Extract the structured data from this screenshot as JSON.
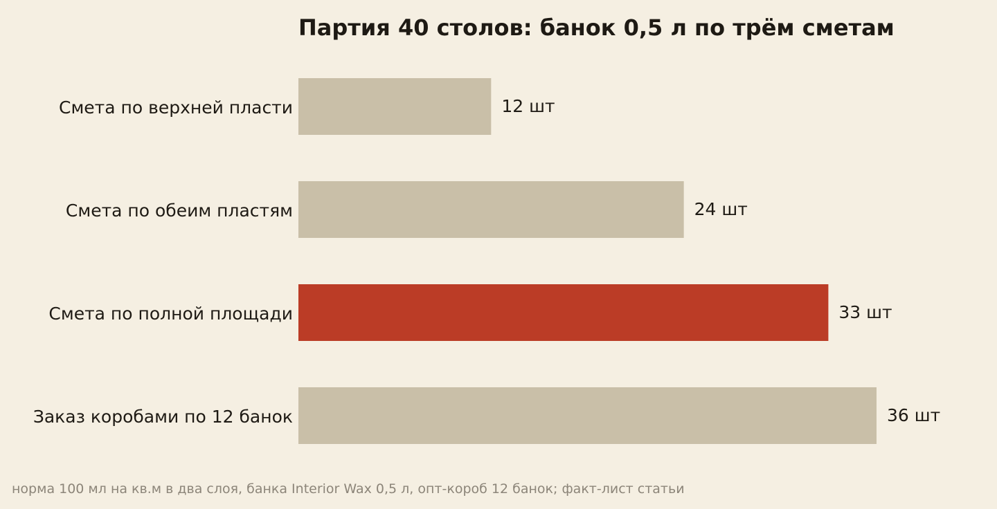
{
  "chart_data": {
    "type": "bar",
    "orientation": "horizontal",
    "title": "Партия 40 столов: банок 0,5 л по трём сметам",
    "categories": [
      "Смета по верхней пласти",
      "Смета по обеим пластям",
      "Смета по полной площади",
      "Заказ коробами по 12 банок"
    ],
    "values": [
      12,
      24,
      33,
      36
    ],
    "value_labels": [
      "12 шт",
      "24 шт",
      "33 шт",
      "36 шт"
    ],
    "unit": "шт",
    "highlight_index": 2,
    "xlim": [
      0,
      36
    ],
    "grid": false,
    "colors": {
      "bar": "#c9bfa8",
      "highlight": "#bb3c26",
      "text": "#1e1a14",
      "background": "#f5efe2"
    }
  },
  "footnote": "норма 100 мл на кв.м в два слоя, банка Interior Wax 0,5 л, опт-короб 12 банок; факт-лист статьи"
}
